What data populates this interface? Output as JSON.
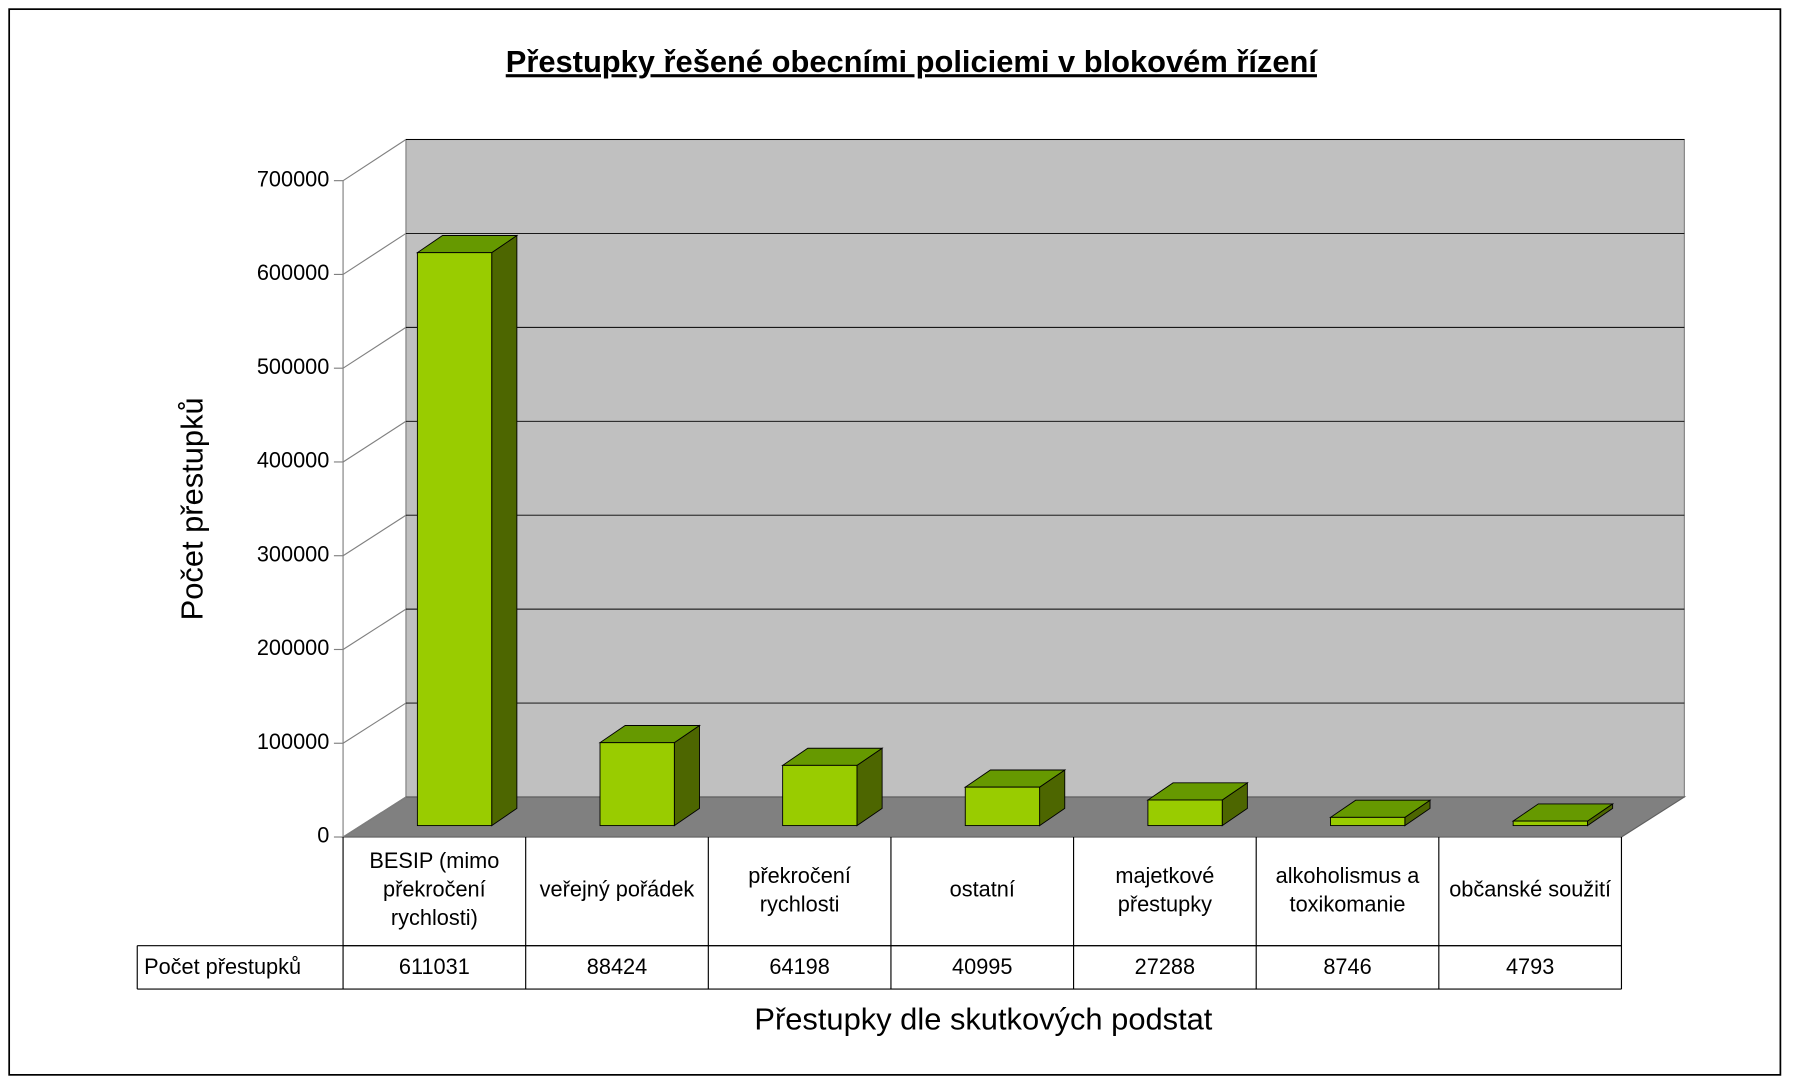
{
  "chart_data": {
    "type": "bar3d",
    "title": "Přestupky řešené obecními policiemi v blokovém řízení",
    "y_label": "Počet přestupků",
    "x_label": "Přestupky dle skutkových podstat",
    "categories": [
      "BESIP (mimo překročení rychlosti)",
      "veřejný pořádek",
      "překročení rychlosti",
      "ostatní",
      "majetkové přestupky",
      "alkoholismus a toxikomanie",
      "občanské soužití"
    ],
    "series": [
      {
        "name": "Počet přestupků",
        "color": "#99cc00",
        "values": [
          611031,
          88424,
          64198,
          40995,
          27288,
          8746,
          4793
        ]
      }
    ],
    "ylim": [
      0,
      700000
    ],
    "yticks": [
      0,
      100000,
      200000,
      300000,
      400000,
      500000,
      600000,
      700000
    ],
    "grid": true,
    "data_table": true
  }
}
